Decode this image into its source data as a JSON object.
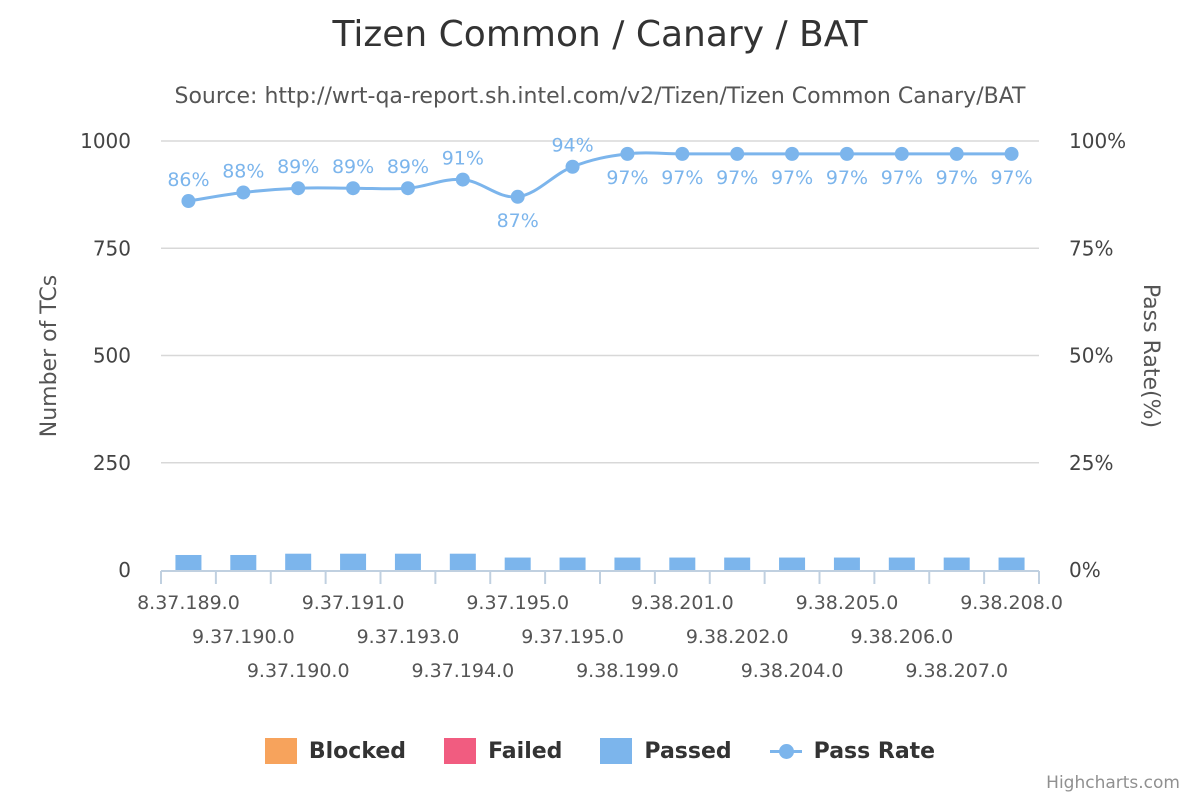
{
  "chart_data": {
    "type": "bar+line",
    "title": "Tizen Common / Canary / BAT",
    "subtitle": "Source: http://wrt-qa-report.sh.intel.com/v2/Tizen/Tizen Common Canary/BAT",
    "ylabel": "Number of TCs",
    "y2label": "Pass Rate(%)",
    "ylim": [
      0,
      1000
    ],
    "y2lim": [
      0,
      100
    ],
    "yticks": [
      "0",
      "250",
      "500",
      "750",
      "1000"
    ],
    "y2ticks": [
      "0%",
      "25%",
      "50%",
      "75%",
      "100%"
    ],
    "grid": true,
    "stacked": true,
    "legend_position": "bottom-center",
    "categories": [
      "8.37.189.0",
      "9.37.190.0",
      "9.37.190.0",
      "9.37.191.0",
      "9.37.193.0",
      "9.37.194.0",
      "9.37.195.0",
      "9.37.195.0",
      "9.38.199.0",
      "9.38.201.0",
      "9.38.202.0",
      "9.38.204.0",
      "9.38.205.0",
      "9.38.206.0",
      "9.38.207.0",
      "9.38.208.0"
    ],
    "series": [
      {
        "name": "Blocked",
        "type": "column",
        "color": "#f7a35c",
        "values": [
          0,
          0,
          0,
          0,
          0,
          0,
          0,
          0,
          0,
          0,
          0,
          0,
          0,
          0,
          0,
          0
        ]
      },
      {
        "name": "Failed",
        "type": "column",
        "color": "#f15c80",
        "values": [
          0,
          0,
          0,
          0,
          0,
          0,
          0,
          0,
          0,
          0,
          0,
          0,
          0,
          0,
          0,
          0
        ]
      },
      {
        "name": "Passed",
        "type": "column",
        "color": "#7cb5ec",
        "values": [
          35,
          35,
          38,
          38,
          38,
          38,
          29,
          29,
          29,
          29,
          29,
          29,
          29,
          29,
          29,
          29
        ]
      },
      {
        "name": "Pass Rate",
        "type": "spline",
        "axis": "right",
        "color": "#7cb5ec",
        "values": [
          86,
          88,
          89,
          89,
          89,
          91,
          87,
          94,
          97,
          97,
          97,
          97,
          97,
          97,
          97,
          97
        ],
        "labels": [
          "86%",
          "88%",
          "89%",
          "89%",
          "89%",
          "91%",
          "87%",
          "94%",
          "97%",
          "97%",
          "97%",
          "97%",
          "97%",
          "97%",
          "97%",
          "97%"
        ]
      }
    ]
  },
  "legend": {
    "blocked": "Blocked",
    "failed": "Failed",
    "passed": "Passed",
    "pass_rate": "Pass Rate"
  },
  "credits": "Highcharts.com"
}
